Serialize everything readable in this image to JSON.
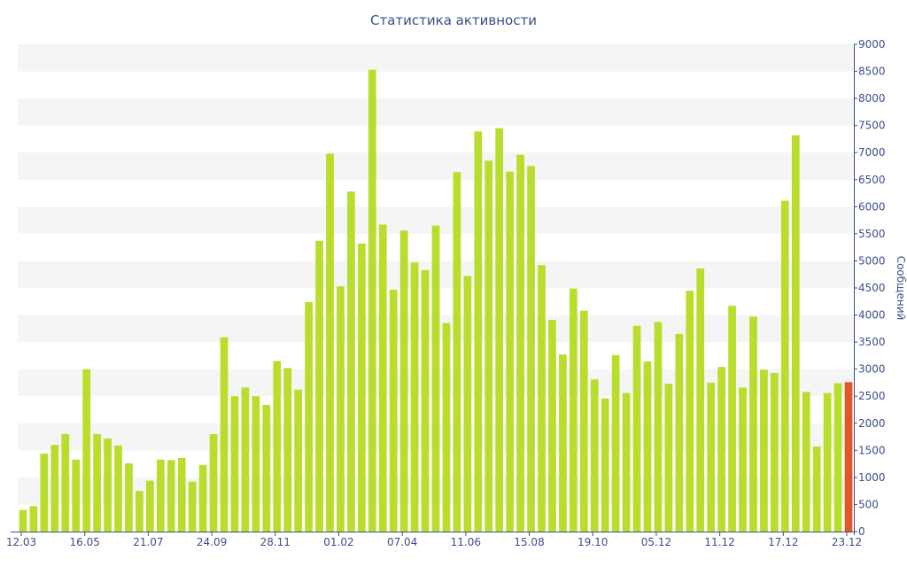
{
  "chart_data": {
    "type": "bar",
    "title": "Статистика активности",
    "ylabel": "Сообщений",
    "xlabel": "",
    "ylim": [
      0,
      9000
    ],
    "y_ticks": [
      0,
      500,
      1000,
      1500,
      2000,
      2500,
      3000,
      3500,
      4000,
      4500,
      5000,
      5500,
      6000,
      6500,
      7000,
      7500,
      8000,
      8500,
      9000
    ],
    "y_axis_side": "right",
    "grid": "alternating horizontal bands",
    "x_tick_labels": [
      "12.03",
      "16.05",
      "21.07",
      "24.09",
      "28.11",
      "01.02",
      "07.04",
      "11.06",
      "15.08",
      "19.10",
      "05.12",
      "11.12",
      "17.12",
      "23.12"
    ],
    "values": [
      400,
      470,
      1440,
      1600,
      1800,
      1330,
      3000,
      1800,
      1720,
      1590,
      1260,
      750,
      940,
      1330,
      1320,
      1360,
      920,
      1230,
      1800,
      3590,
      2500,
      2660,
      2500,
      2340,
      3150,
      3020,
      2620,
      4240,
      5370,
      6980,
      4530,
      6280,
      5320,
      8530,
      5670,
      4470,
      5560,
      4970,
      4830,
      5650,
      3850,
      6640,
      4720,
      7390,
      6850,
      7450,
      6650,
      6960,
      6750,
      4920,
      3910,
      3270,
      4490,
      4080,
      2810,
      2460,
      3260,
      2560,
      3800,
      3140,
      3870,
      2730,
      3650,
      4450,
      4860,
      2750,
      3040,
      4170,
      2660,
      3970,
      2990,
      2930,
      6110,
      7320,
      2580,
      1570,
      2560,
      2740,
      2760
    ],
    "colors": {
      "bar": "#b8dd2c",
      "highlight_bar": "#e0582a",
      "axis": "#3a4f8a",
      "band": "#f5f5f5"
    },
    "highlight_index": 78
  }
}
